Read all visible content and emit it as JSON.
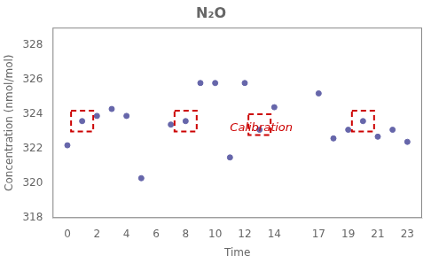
{
  "chart_data": {
    "type": "scatter",
    "title": "N₂O",
    "xlabel": "Time",
    "ylabel": "Concentration (nmol/mol)",
    "xlim": [
      -1,
      24
    ],
    "ylim": [
      318,
      329
    ],
    "xticks": [
      0,
      2,
      4,
      6,
      8,
      10,
      12,
      14,
      17,
      19,
      21,
      23
    ],
    "yticks": [
      318,
      320,
      322,
      324,
      326,
      328
    ],
    "grid": false,
    "series": [
      {
        "type": "scatter",
        "marker": "circle",
        "color": "#6666aa",
        "x": [
          0,
          1,
          2,
          3,
          4,
          5,
          7,
          8,
          9,
          10,
          11,
          12,
          13,
          14,
          17,
          18,
          19,
          20,
          21,
          22,
          23
        ],
        "values": [
          322.2,
          323.6,
          323.9,
          324.3,
          323.9,
          320.3,
          323.4,
          323.6,
          325.8,
          325.8,
          321.5,
          325.8,
          323.1,
          324.4,
          325.2,
          322.6,
          323.1,
          323.6,
          322.7,
          323.1,
          322.4
        ]
      },
      {
        "type": "box",
        "line_style": "dashed",
        "color": "#cc0000",
        "x": [
          1,
          8,
          13,
          20
        ],
        "values": [
          323.6,
          323.6,
          323.4,
          323.6
        ]
      }
    ],
    "annotations": [
      {
        "text": "Calibration",
        "x": 11,
        "y": 323.0,
        "color": "#cc0000"
      }
    ]
  }
}
